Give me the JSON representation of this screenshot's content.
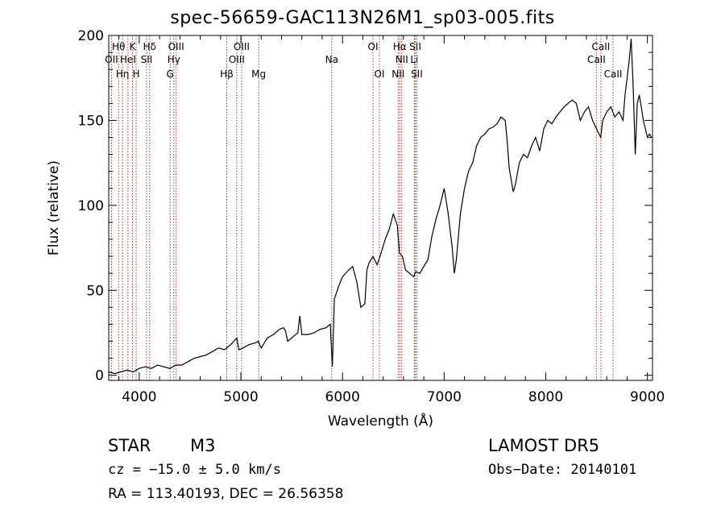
{
  "header": {
    "title": "spec-56659-GAC113N26M1_sp03-005.fits"
  },
  "info": {
    "object_type": "STAR",
    "object_class": "M3",
    "survey": "LAMOST DR5",
    "cz": "cz = −15.0 ± 5.0 km/s",
    "obs_date": "Obs−Date: 20140101",
    "radec": "RA = 113.40193, DEC =  26.56358"
  },
  "chart_data": {
    "type": "line",
    "title": "spec-56659-GAC113N26M1_sp03-005.fits",
    "xlabel": "Wavelength (Å)",
    "ylabel": "Flux (relative)",
    "xlim": [
      3700,
      9050
    ],
    "ylim": [
      -3,
      200
    ],
    "x_ticks": [
      4000,
      5000,
      6000,
      7000,
      8000,
      9000
    ],
    "y_ticks": [
      0,
      50,
      100,
      150,
      200
    ],
    "grid": false,
    "line_color": "#000000",
    "marker_color": "#b03030",
    "series": [
      {
        "x": [
          3700,
          3760,
          3820,
          3880,
          3940,
          4000,
          4060,
          4120,
          4180,
          4240,
          4300,
          4360,
          4420,
          4480,
          4540,
          4600,
          4660,
          4720,
          4780,
          4840,
          4900,
          4960,
          4980,
          5020,
          5080,
          5140,
          5170,
          5200,
          5260,
          5320,
          5380,
          5420,
          5440,
          5460,
          5500,
          5560,
          5580,
          5600,
          5660,
          5720,
          5780,
          5840,
          5880,
          5900,
          5920,
          5960,
          6000,
          6060,
          6100,
          6140,
          6180,
          6220,
          6240,
          6260,
          6300,
          6340,
          6380,
          6420,
          6460,
          6500,
          6540,
          6560,
          6590,
          6620,
          6660,
          6700,
          6720,
          6760,
          6800,
          6840,
          6880,
          6920,
          6960,
          7000,
          7040,
          7080,
          7100,
          7120,
          7160,
          7200,
          7240,
          7280,
          7320,
          7360,
          7400,
          7440,
          7480,
          7520,
          7560,
          7600,
          7620,
          7640,
          7660,
          7680,
          7700,
          7740,
          7780,
          7820,
          7860,
          7900,
          7940,
          7980,
          8020,
          8060,
          8100,
          8140,
          8180,
          8220,
          8260,
          8300,
          8340,
          8380,
          8420,
          8460,
          8500,
          8540,
          8560,
          8600,
          8640,
          8680,
          8720,
          8760,
          8780,
          8800,
          8820,
          8840,
          8860,
          8880,
          8900,
          8920,
          8940,
          8960,
          8980,
          9000,
          9020,
          9040
        ],
        "y": [
          2,
          1,
          2,
          3,
          2,
          4,
          5,
          4,
          6,
          5,
          4,
          6,
          6,
          8,
          10,
          11,
          12,
          14,
          16,
          15,
          18,
          22,
          15,
          16,
          18,
          19,
          20,
          16,
          22,
          24,
          27,
          28,
          26,
          20,
          22,
          25,
          35,
          24,
          24,
          25,
          27,
          28,
          30,
          5,
          45,
          52,
          58,
          62,
          64,
          55,
          40,
          42,
          62,
          66,
          70,
          65,
          72,
          80,
          86,
          95,
          88,
          72,
          70,
          62,
          60,
          58,
          61,
          60,
          64,
          68,
          82,
          92,
          100,
          110,
          95,
          75,
          60,
          68,
          95,
          110,
          120,
          125,
          135,
          140,
          142,
          145,
          146,
          148,
          152,
          150,
          138,
          122,
          115,
          108,
          112,
          125,
          130,
          128,
          135,
          140,
          132,
          145,
          150,
          148,
          152,
          155,
          158,
          160,
          162,
          160,
          150,
          155,
          158,
          150,
          145,
          140,
          150,
          155,
          158,
          152,
          155,
          150,
          165,
          175,
          185,
          198,
          170,
          130,
          160,
          165,
          158,
          150,
          145,
          140,
          142,
          140
        ]
      }
    ],
    "lines": [
      {
        "x": 3727,
        "label": "OII",
        "row": 2
      },
      {
        "x": 3797,
        "label": "Hθ",
        "row": 1
      },
      {
        "x": 3835,
        "label": "Hη",
        "row": 3
      },
      {
        "x": 3889,
        "label": "HeI",
        "row": 2
      },
      {
        "x": 3934,
        "label": "K",
        "row": 1
      },
      {
        "x": 3970,
        "label": "H",
        "row": 3
      },
      {
        "x": 4072,
        "label": "SII",
        "row": 2
      },
      {
        "x": 4102,
        "label": "Hδ",
        "row": 1
      },
      {
        "x": 4304,
        "label": "G",
        "row": 3
      },
      {
        "x": 4340,
        "label": "Hγ",
        "row": 2
      },
      {
        "x": 4363,
        "label": "OIII",
        "row": 1
      },
      {
        "x": 4861,
        "label": "Hβ",
        "row": 3
      },
      {
        "x": 4959,
        "label": "OIII",
        "row": 2
      },
      {
        "x": 5007,
        "label": "OIII",
        "row": 1
      },
      {
        "x": 5175,
        "label": "Mg",
        "row": 3
      },
      {
        "x": 5894,
        "label": "Na",
        "row": 2
      },
      {
        "x": 6300,
        "label": "OI",
        "row": 1
      },
      {
        "x": 6363,
        "label": "OI",
        "row": 3
      },
      {
        "x": 6548,
        "label": "NII",
        "row": 3
      },
      {
        "x": 6563,
        "label": "Hα",
        "row": 1
      },
      {
        "x": 6583,
        "label": "NII",
        "row": 2
      },
      {
        "x": 6707,
        "label": "Li",
        "row": 2
      },
      {
        "x": 6716,
        "label": "SII",
        "row": 1
      },
      {
        "x": 6731,
        "label": "SII",
        "row": 3
      },
      {
        "x": 8498,
        "label": "CaII",
        "row": 2
      },
      {
        "x": 8542,
        "label": "CaII",
        "row": 1
      },
      {
        "x": 8662,
        "label": "CaII",
        "row": 3
      }
    ]
  }
}
